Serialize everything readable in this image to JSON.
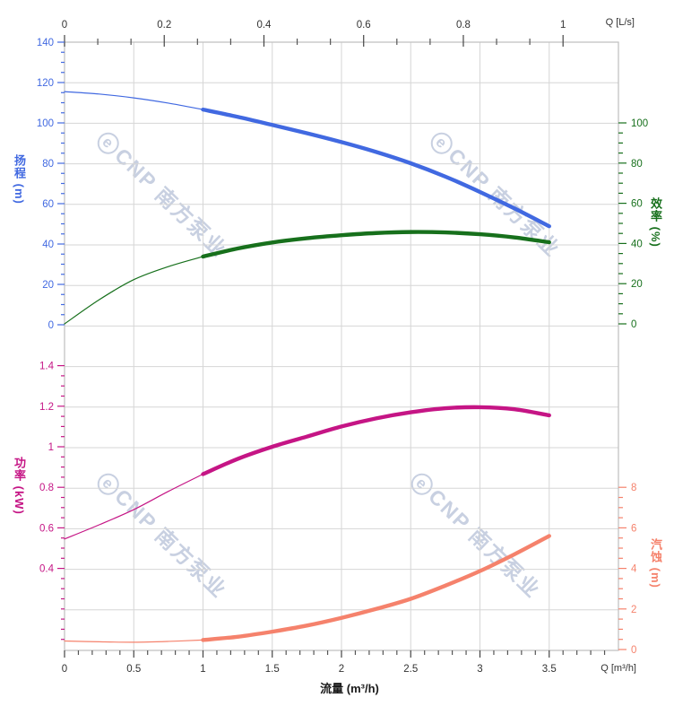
{
  "watermark": {
    "logo_letter": "e",
    "text": "CNP 南方泵业",
    "color": "rgba(139,156,193,0.48)"
  },
  "chart_data": [
    {
      "type": "line",
      "section": "top",
      "x_axis_top": {
        "title": "Q [L/s]",
        "min": 0,
        "max": 1.1111,
        "tick_values": [
          0,
          0.2,
          0.4,
          0.6,
          0.8,
          1
        ],
        "tick_labels": [
          "0",
          "0.2",
          "0.4",
          "0.6",
          "0.8",
          "1"
        ]
      },
      "y_left": {
        "title": "扬程 (m)",
        "color": "#4169e1",
        "min": 0,
        "max": 140,
        "major": 20,
        "minor": 5,
        "tick_values": [
          140,
          120,
          100,
          80,
          60,
          40,
          20,
          0
        ],
        "tick_labels": [
          "140",
          "120",
          "100",
          "80",
          "60",
          "40",
          "20",
          "0"
        ]
      },
      "y_right": {
        "title": "效率 (%)",
        "color": "#17701c",
        "min": 0,
        "max": 100,
        "major": 20,
        "minor": 5,
        "tick_values": [
          100,
          80,
          60,
          40,
          20,
          0
        ],
        "tick_labels": [
          "100",
          "80",
          "60",
          "40",
          "20",
          "0"
        ]
      },
      "x": [
        0,
        0.25,
        0.5,
        0.75,
        1,
        1.25,
        1.5,
        1.75,
        2,
        2.25,
        2.5,
        2.75,
        3,
        3.25,
        3.5
      ],
      "series": [
        {
          "id": "head",
          "name": "扬程",
          "yaxis": "left",
          "color": "#4169e1",
          "thick_from": 1,
          "values": [
            115.5,
            114.3,
            112.4,
            109.8,
            106.6,
            103.0,
            99.0,
            94.9,
            90.5,
            85.6,
            80.0,
            73.4,
            65.8,
            57.6,
            48.8
          ]
        },
        {
          "id": "efficiency",
          "name": "效率",
          "yaxis": "right",
          "color": "#17701c",
          "thick_from": 1,
          "values": [
            0,
            12,
            22,
            28.5,
            33.5,
            37.5,
            40.5,
            42.6,
            44.1,
            45.2,
            45.7,
            45.5,
            44.6,
            43.0,
            40.6
          ]
        }
      ]
    },
    {
      "type": "line",
      "section": "bottom",
      "x_axis_bottom": {
        "title": "流量 (m³/h)",
        "unit_label": "Q [m³/h]",
        "min": 0,
        "max": 4,
        "minor": 0.1,
        "tick_values": [
          0,
          0.5,
          1,
          1.5,
          2,
          2.5,
          3,
          3.5
        ],
        "tick_labels": [
          "0",
          "0.5",
          "1",
          "1.5",
          "2",
          "2.5",
          "3",
          "3.5"
        ]
      },
      "y_left": {
        "title": "功率 (kW)",
        "color": "#c51585",
        "min": 0,
        "max": 1.6,
        "major": 0.2,
        "minor": 0.05,
        "tick_values": [
          1.4,
          1.2,
          1,
          0.8,
          0.6,
          0.4
        ],
        "tick_labels": [
          "1.4",
          "1.2",
          "1",
          "0.8",
          "0.6",
          "0.4"
        ]
      },
      "y_right": {
        "title": "汽蚀 (m)",
        "color": "#f5826c",
        "min": 0,
        "max": 16,
        "major": 2,
        "minor": 0.5,
        "tick_values": [
          8,
          6,
          4,
          2,
          0
        ],
        "tick_labels": [
          "8",
          "6",
          "4",
          "2",
          "0"
        ]
      },
      "x": [
        0,
        0.25,
        0.5,
        0.75,
        1,
        1.25,
        1.5,
        1.75,
        2,
        2.25,
        2.5,
        2.75,
        3,
        3.25,
        3.5
      ],
      "series": [
        {
          "id": "power",
          "name": "功率",
          "yaxis": "left",
          "color": "#c51585",
          "thick_from": 1,
          "values": [
            0.545,
            0.615,
            0.69,
            0.78,
            0.865,
            0.94,
            1.0,
            1.05,
            1.1,
            1.14,
            1.17,
            1.19,
            1.195,
            1.185,
            1.155
          ]
        },
        {
          "id": "npsh",
          "name": "汽蚀",
          "yaxis": "right",
          "color": "#f5826c",
          "thick_from": 1,
          "values": [
            0.42,
            0.38,
            0.36,
            0.4,
            0.47,
            0.63,
            0.88,
            1.18,
            1.56,
            2.0,
            2.5,
            3.15,
            3.87,
            4.7,
            5.6
          ]
        }
      ]
    }
  ],
  "style": {
    "grid_color": "#d6d6d6",
    "border_color": "#bfbfbf",
    "flow_tick_color": "#333333",
    "background": "#ffffff"
  }
}
